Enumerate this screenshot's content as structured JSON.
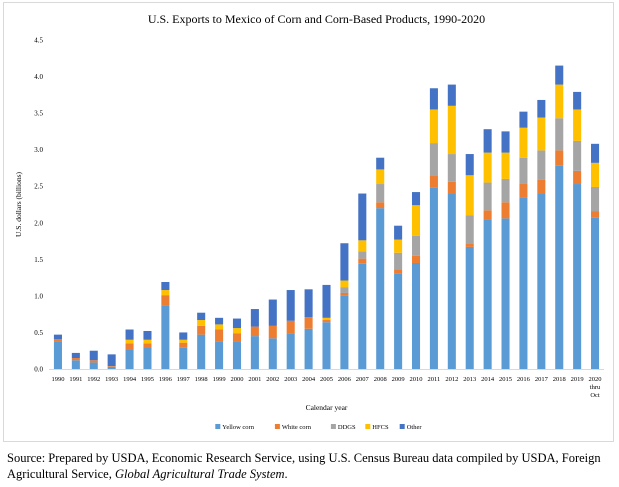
{
  "chart_data": {
    "type": "bar",
    "stacked": true,
    "title": "U.S. Exports to Mexico of Corn and Corn-Based Products, 1990-2020",
    "xlabel": "Calendar year",
    "ylabel": "U.S. dollars (billions)",
    "ylim": [
      0,
      4.5
    ],
    "yticks": [
      "0.0",
      "0.5",
      "1.0",
      "1.5",
      "2.0",
      "2.5",
      "3.0",
      "3.5",
      "4.0",
      "4.5"
    ],
    "ytick_values": [
      0,
      0.5,
      1.0,
      1.5,
      2.0,
      2.5,
      3.0,
      3.5,
      4.0,
      4.5
    ],
    "grid": false,
    "legend_position": "bottom",
    "categories": [
      "1990",
      "1991",
      "1992",
      "1993",
      "1994",
      "1995",
      "1996",
      "1997",
      "1998",
      "1999",
      "2000",
      "2001",
      "2002",
      "2003",
      "2004",
      "2005",
      "2006",
      "2007",
      "2008",
      "2009",
      "2010",
      "2011",
      "2012",
      "2013",
      "2014",
      "2015",
      "2016",
      "2017",
      "2018",
      "2019",
      "2020"
    ],
    "category_sublabels": {
      "2020": [
        "thru",
        "Oct"
      ]
    },
    "series": [
      {
        "name": "Yellow corn",
        "color": "#5b9bd5",
        "values": [
          0.37,
          0.12,
          0.09,
          0.03,
          0.26,
          0.3,
          0.87,
          0.29,
          0.47,
          0.38,
          0.37,
          0.45,
          0.42,
          0.49,
          0.55,
          0.64,
          1.0,
          1.44,
          2.2,
          1.31,
          1.45,
          2.48,
          2.4,
          1.67,
          2.05,
          2.06,
          2.35,
          2.4,
          2.78,
          2.53,
          2.07
        ]
      },
      {
        "name": "White corn",
        "color": "#ed7d31",
        "values": [
          0.04,
          0.03,
          0.03,
          0.01,
          0.09,
          0.05,
          0.14,
          0.07,
          0.12,
          0.16,
          0.12,
          0.13,
          0.17,
          0.17,
          0.16,
          0.03,
          0.04,
          0.07,
          0.08,
          0.05,
          0.1,
          0.16,
          0.16,
          0.05,
          0.12,
          0.22,
          0.19,
          0.19,
          0.21,
          0.18,
          0.09
        ]
      },
      {
        "name": "DDGS",
        "color": "#a5a5a5",
        "values": [
          0.0,
          0.0,
          0.0,
          0.0,
          0.0,
          0.0,
          0.0,
          0.0,
          0.0,
          0.0,
          0.0,
          0.0,
          0.0,
          0.0,
          0.0,
          0.0,
          0.08,
          0.1,
          0.25,
          0.23,
          0.27,
          0.45,
          0.38,
          0.38,
          0.38,
          0.32,
          0.35,
          0.4,
          0.44,
          0.41,
          0.33
        ]
      },
      {
        "name": "HFCS",
        "color": "#ffc000",
        "values": [
          0.0,
          0.0,
          0.0,
          0.0,
          0.05,
          0.05,
          0.07,
          0.04,
          0.08,
          0.07,
          0.07,
          0.0,
          0.0,
          0.0,
          0.0,
          0.03,
          0.09,
          0.15,
          0.2,
          0.18,
          0.42,
          0.46,
          0.66,
          0.55,
          0.41,
          0.36,
          0.41,
          0.45,
          0.46,
          0.43,
          0.33
        ]
      },
      {
        "name": "Other",
        "color": "#4472c4",
        "values": [
          0.06,
          0.07,
          0.13,
          0.16,
          0.14,
          0.12,
          0.11,
          0.1,
          0.1,
          0.09,
          0.13,
          0.24,
          0.36,
          0.42,
          0.38,
          0.45,
          0.51,
          0.64,
          0.16,
          0.19,
          0.18,
          0.29,
          0.29,
          0.29,
          0.32,
          0.29,
          0.22,
          0.24,
          0.26,
          0.24,
          0.26
        ]
      }
    ]
  },
  "source": {
    "prefix": "Source: Prepared by USDA, Economic Research Service, using U.S. Census Bureau data compiled by USDA, Foreign Agricultural Service, ",
    "italic": "Global Agricultural Trade System",
    "suffix": "."
  }
}
